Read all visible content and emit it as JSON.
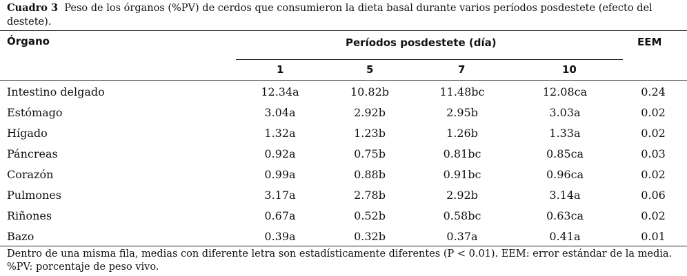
{
  "caption": {
    "label": "Cuadro 3",
    "text": "Peso de los órganos (%PV) de cerdos que consumieron la dieta basal durante varios períodos posdestete (efecto del destete)."
  },
  "header": {
    "organ": "Órgano",
    "periods": "Períodos posdestete (día)",
    "eem": "EEM",
    "days": [
      "1",
      "5",
      "7",
      "10"
    ]
  },
  "rows": [
    {
      "organ": "Intestino delgado",
      "values": [
        "12.34a",
        "10.82b",
        "11.48bc",
        "12.08ca"
      ],
      "eem": "0.24"
    },
    {
      "organ": "Estómago",
      "values": [
        "3.04a",
        "2.92b",
        "2.95b",
        "3.03a"
      ],
      "eem": "0.02"
    },
    {
      "organ": "Hígado",
      "values": [
        "1.32a",
        "1.23b",
        "1.26b",
        "1.33a"
      ],
      "eem": "0.02"
    },
    {
      "organ": "Páncreas",
      "values": [
        "0.92a",
        "0.75b",
        "0.81bc",
        "0.85ca"
      ],
      "eem": "0.03"
    },
    {
      "organ": "Corazón",
      "values": [
        "0.99a",
        "0.88b",
        "0.91bc",
        "0.96ca"
      ],
      "eem": "0.02"
    },
    {
      "organ": "Pulmones",
      "values": [
        "3.17a",
        "2.78b",
        "2.92b",
        "3.14a"
      ],
      "eem": "0.06"
    },
    {
      "organ": "Riñones",
      "values": [
        "0.67a",
        "0.52b",
        "0.58bc",
        "0.63ca"
      ],
      "eem": "0.02"
    },
    {
      "organ": "Bazo",
      "values": [
        "0.39a",
        "0.32b",
        "0.37a",
        "0.41a"
      ],
      "eem": "0.01"
    }
  ],
  "footnote": "Dentro de una misma fila, medias con diferente letra son estadísticamente diferentes (P < 0.01). EEM: error estándar de la media. %PV: porcentaje de peso vivo."
}
